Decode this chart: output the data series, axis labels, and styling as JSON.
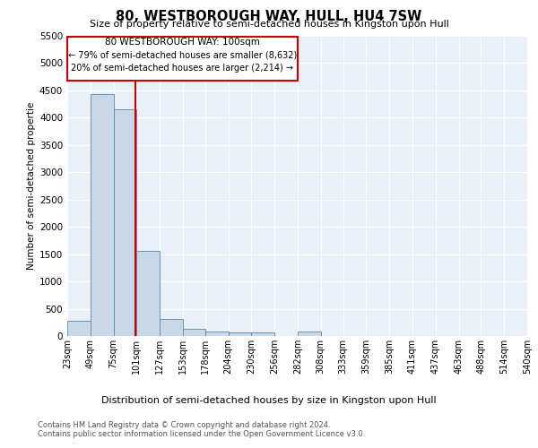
{
  "title": "80, WESTBOROUGH WAY, HULL, HU4 7SW",
  "subtitle": "Size of property relative to semi-detached houses in Kingston upon Hull",
  "xlabel": "Distribution of semi-detached houses by size in Kingston upon Hull",
  "ylabel": "Number of semi-detached propertie",
  "property_label": "80 WESTBOROUGH WAY: 100sqm",
  "pct_smaller": 79,
  "count_smaller": 8632,
  "pct_larger": 20,
  "count_larger": 2214,
  "bin_edges": [
    23,
    49,
    75,
    101,
    127,
    153,
    178,
    204,
    230,
    256,
    282,
    308,
    333,
    359,
    385,
    411,
    437,
    463,
    488,
    514,
    540
  ],
  "bar_heights": [
    280,
    4430,
    4150,
    1560,
    320,
    130,
    75,
    65,
    65,
    0,
    75,
    0,
    0,
    0,
    0,
    0,
    0,
    0,
    0,
    0
  ],
  "bar_color": "#c8d8e8",
  "bar_edge_color": "#5588aa",
  "red_line_x": 100,
  "ylim_max": 5500,
  "yticks": [
    0,
    500,
    1000,
    1500,
    2000,
    2500,
    3000,
    3500,
    4000,
    4500,
    5000,
    5500
  ],
  "background_color": "#eaf0f8",
  "footer_line1": "Contains HM Land Registry data © Crown copyright and database right 2024.",
  "footer_line2": "Contains public sector information licensed under the Open Government Licence v3.0."
}
